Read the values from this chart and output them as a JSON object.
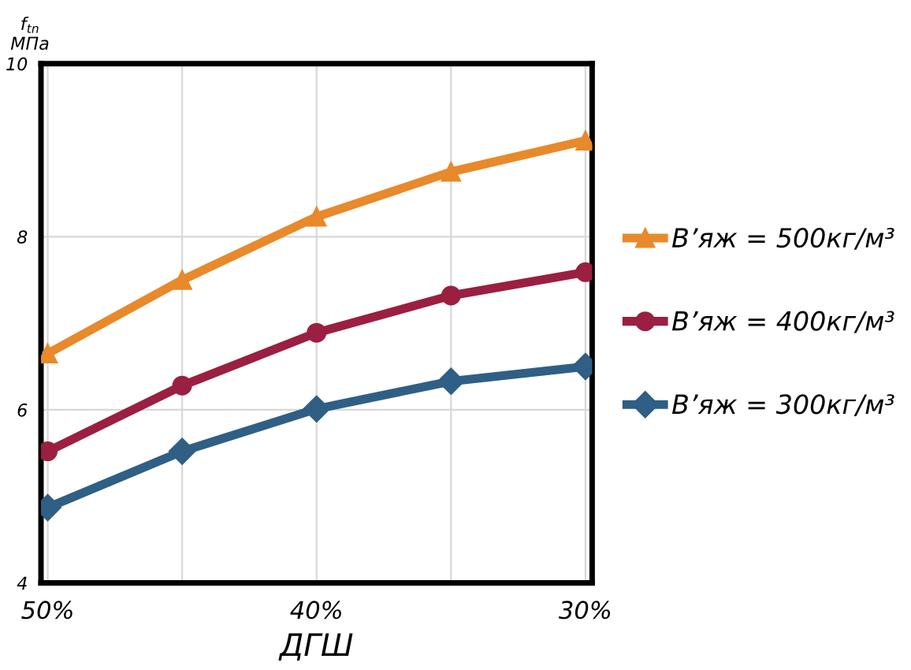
{
  "chart_data": {
    "type": "line",
    "xlabel": "ДГШ",
    "ylabel": "f$_{tn}$\nМПа",
    "categories": [
      "50%",
      null,
      "40%",
      null,
      "30%"
    ],
    "series": [
      {
        "name": "В’яж = 500кг/м³",
        "color": "#e8892b",
        "marker": "triangle",
        "values": [
          6.65,
          7.5,
          8.23,
          8.75,
          9.11
        ]
      },
      {
        "name": "В’яж = 400кг/м³",
        "color": "#9b1f40",
        "marker": "circle",
        "values": [
          5.52,
          6.28,
          6.89,
          7.32,
          7.59
        ]
      },
      {
        "name": "В’яж = 300кг/м³",
        "color": "#2f5f85",
        "marker": "diamond",
        "values": [
          4.87,
          5.52,
          6.01,
          6.33,
          6.5
        ]
      }
    ],
    "ylim": [
      4,
      10
    ],
    "yticks": [
      4,
      6,
      8,
      10
    ],
    "grid": true,
    "legend": "right",
    "line_style": "solid"
  }
}
